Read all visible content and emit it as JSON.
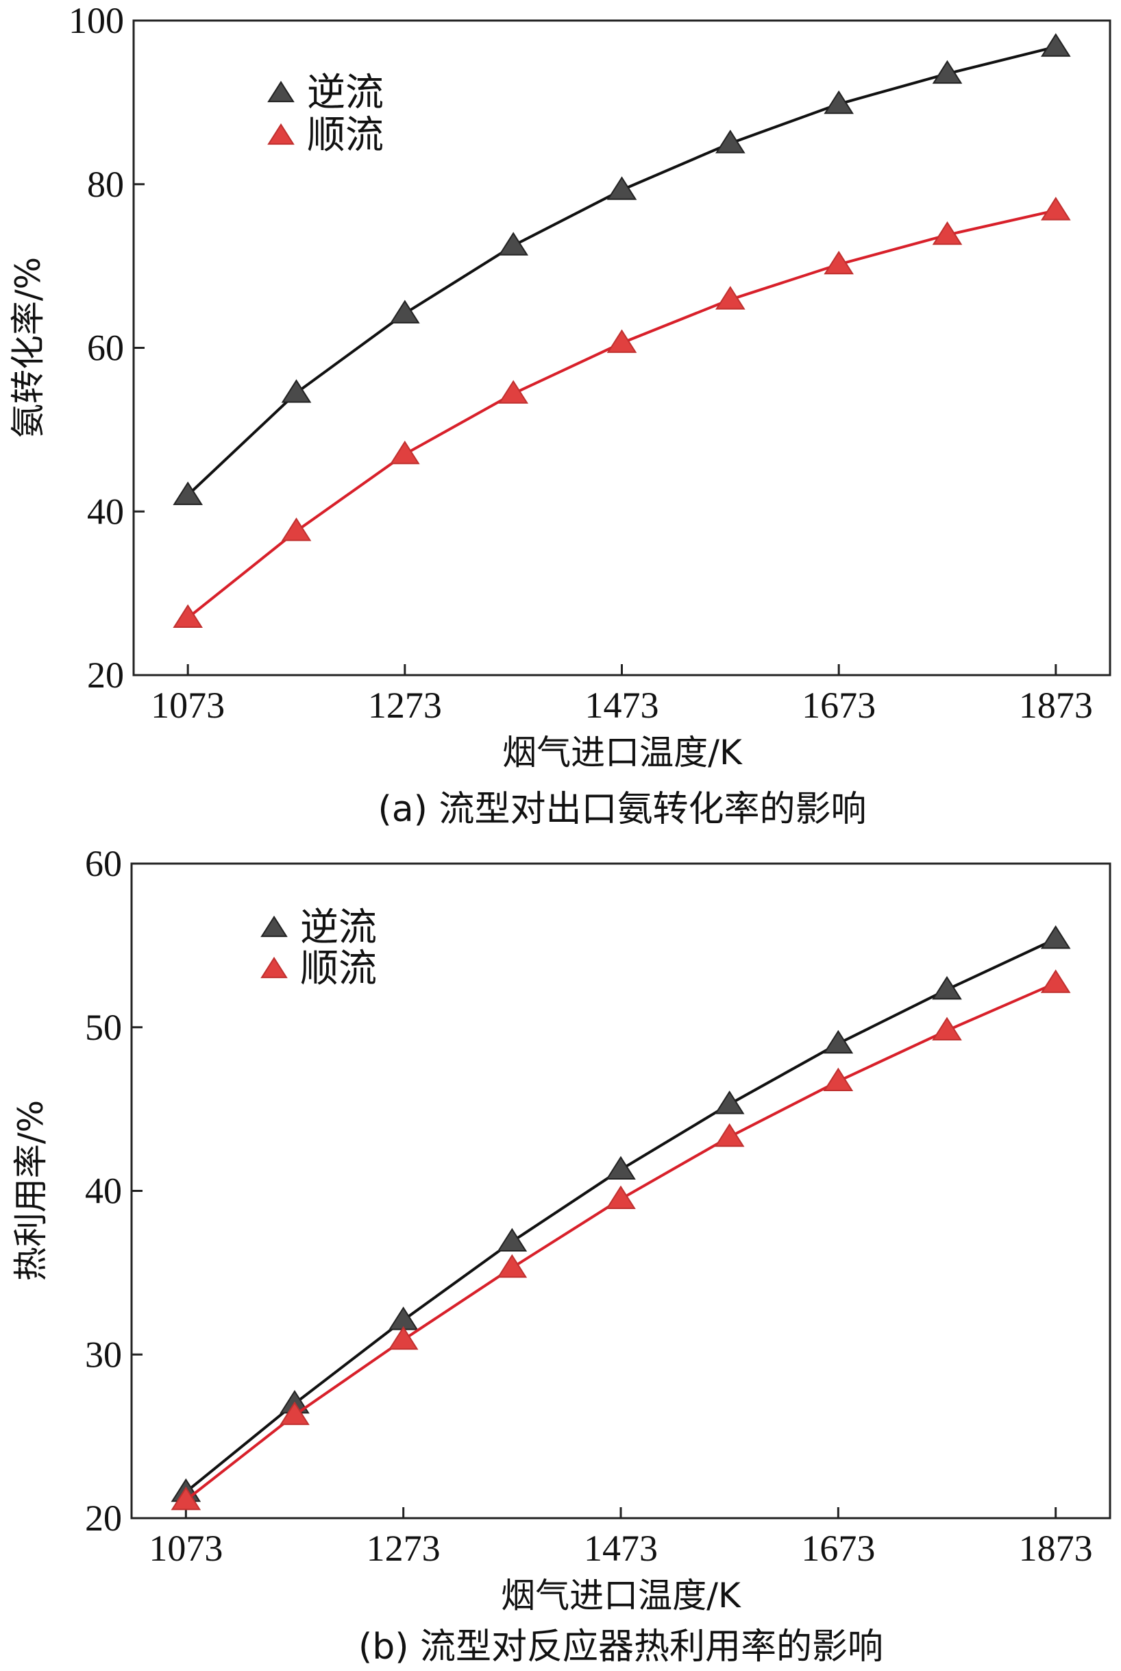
{
  "chart_data": [
    {
      "type": "line",
      "caption": "(a) 流型对出口氨转化率的影响",
      "xlabel": "烟气进口温度/K",
      "ylabel": "氨转化率/%",
      "xlim": [
        1023,
        1923
      ],
      "ylim": [
        20,
        100
      ],
      "xticks": [
        "1073",
        "1273",
        "1473",
        "1673",
        "1873"
      ],
      "yticks": [
        "20",
        "40",
        "60",
        "80",
        "100"
      ],
      "x": [
        1073,
        1173,
        1273,
        1373,
        1473,
        1573,
        1673,
        1773,
        1873
      ],
      "legend_position": "top-left",
      "grid": false,
      "series": [
        {
          "name": "逆流",
          "color": "#4a4a4a",
          "values": [
            42.0,
            54.5,
            64.2,
            72.5,
            79.3,
            85.0,
            89.8,
            93.5,
            96.8
          ]
        },
        {
          "name": "顺流",
          "color": "#e0403f",
          "values": [
            27.0,
            37.6,
            47.0,
            54.4,
            60.6,
            65.9,
            70.2,
            73.8,
            76.8
          ]
        }
      ]
    },
    {
      "type": "line",
      "caption": "(b) 流型对反应器热利用率的影响",
      "xlabel": "烟气进口温度/K",
      "ylabel": "热利用率/%",
      "xlim": [
        1023,
        1923
      ],
      "ylim": [
        20,
        60
      ],
      "xticks": [
        "1073",
        "1273",
        "1473",
        "1673",
        "1873"
      ],
      "yticks": [
        "20",
        "30",
        "40",
        "50",
        "60"
      ],
      "x": [
        1073,
        1173,
        1273,
        1373,
        1473,
        1573,
        1673,
        1773,
        1873
      ],
      "legend_position": "top-left",
      "grid": false,
      "series": [
        {
          "name": "逆流",
          "color": "#4a4a4a",
          "values": [
            21.6,
            27.0,
            32.1,
            36.9,
            41.3,
            45.3,
            49.0,
            52.3,
            55.4
          ]
        },
        {
          "name": "顺流",
          "color": "#e0403f",
          "values": [
            21.1,
            26.3,
            30.9,
            35.3,
            39.5,
            43.3,
            46.7,
            49.8,
            52.7
          ]
        }
      ]
    }
  ]
}
